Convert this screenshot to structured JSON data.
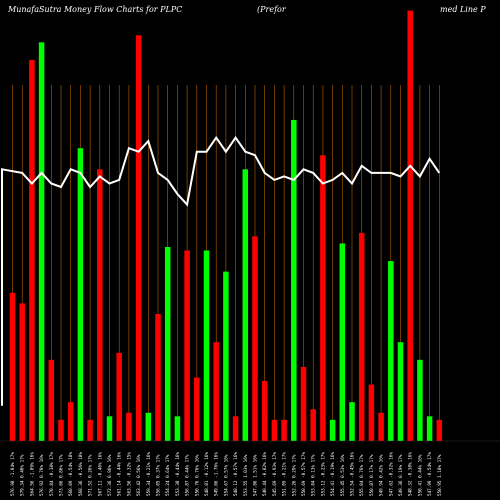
{
  "chart_data": {
    "type": "bar",
    "title_left": "MunafaSutra  Money Flow  Charts for PLPC",
    "title_mid": "(Prefor",
    "title_right": "med Line   P",
    "categories": [
      "576.98 -1.04% 17%",
      "579.34 0.40% 17%",
      "564.56 -1.09% 16%",
      "576.92 0.70% 16%",
      "570.84 -0.38% 17%",
      "573.06 0.86% 17%",
      "560.09 -0.54% 18%",
      "568.36 -0.56% 18%",
      "571.52 0.26% 17%",
      "567.11 -0.46% 16%",
      "572.36 0.96% 16%",
      "561.14 -0.44% 16%",
      "563.56 -0.32% 15%",
      "563.42 0.56% 16%",
      "559.34 -0.21% 16%",
      "556.05 0.37% 17%",
      "554.24 0.64% 17%",
      "553.38 -0.44% 16%",
      "556.87 0.44% 17%",
      "550.76 0.76% 16%",
      "548.81 -0.12% 16%",
      "549.06 -1.76% 16%",
      "554.67 0.57% 16%",
      "548.12 -0.57% 16%",
      "553.55 1.03% 16%",
      "547.86 1.51% 16%",
      "540.44 -0.82% 16%",
      "545.69 -0.93% 17%",
      "551.09 -0.21% 17%",
      "552.26 0.29% 17%",
      "550.69 -0.57% 17%",
      "553.84 0.13% 17%",
      "553.12 -0.23% 17%",
      "554.41 -0.19% 16%",
      "555.45 0.53% 16%",
      "552.54 -0.45% 16%",
      "555.04 0.76% 17%",
      "550.87 0.17% 17%",
      "549.94 0.42% 16%",
      "547.62 -0.32% 16%",
      "549.36 0.19% 17%",
      "548.32 -0.38% 16%",
      "550.41 0.44% 16%",
      "547.99 -0.54% 17%",
      "550.95 1.18% 17%"
    ],
    "colors": [
      "red",
      "red",
      "red",
      "green",
      "red",
      "red",
      "red",
      "green",
      "red",
      "red",
      "green",
      "red",
      "red",
      "red",
      "green",
      "red",
      "green",
      "green",
      "red",
      "red",
      "green",
      "red",
      "green",
      "red",
      "green",
      "red",
      "red",
      "red",
      "red",
      "green",
      "red",
      "red",
      "red",
      "green",
      "green",
      "green",
      "red",
      "red",
      "red",
      "green",
      "green",
      "red",
      "green",
      "green",
      "red"
    ],
    "series": [
      {
        "values": [
          42,
          39,
          108,
          113,
          23,
          6,
          11,
          83,
          6,
          77,
          7,
          25,
          8,
          115,
          8,
          36,
          55,
          7,
          54,
          18,
          54,
          28,
          48,
          7,
          77,
          58,
          17,
          6,
          6,
          91,
          21,
          9,
          81,
          6,
          56,
          11,
          59,
          16,
          8,
          51,
          28,
          122,
          23,
          7,
          6
        ]
      }
    ],
    "money_flow_line": [
      77,
      76,
      73,
      76,
      73,
      72,
      77,
      76,
      72,
      75,
      73,
      74,
      83,
      82,
      85,
      76,
      74,
      70,
      67,
      82,
      82,
      86,
      82,
      86,
      82,
      81,
      76,
      74,
      75,
      74,
      77,
      76,
      73,
      74,
      76,
      73,
      78,
      76,
      76,
      76,
      75,
      78,
      75,
      80,
      76
    ],
    "palette": {
      "red": "#ff0000",
      "green": "#00ff00",
      "line": "#ffffff",
      "grid": "#b36200",
      "background": "#000000"
    }
  }
}
